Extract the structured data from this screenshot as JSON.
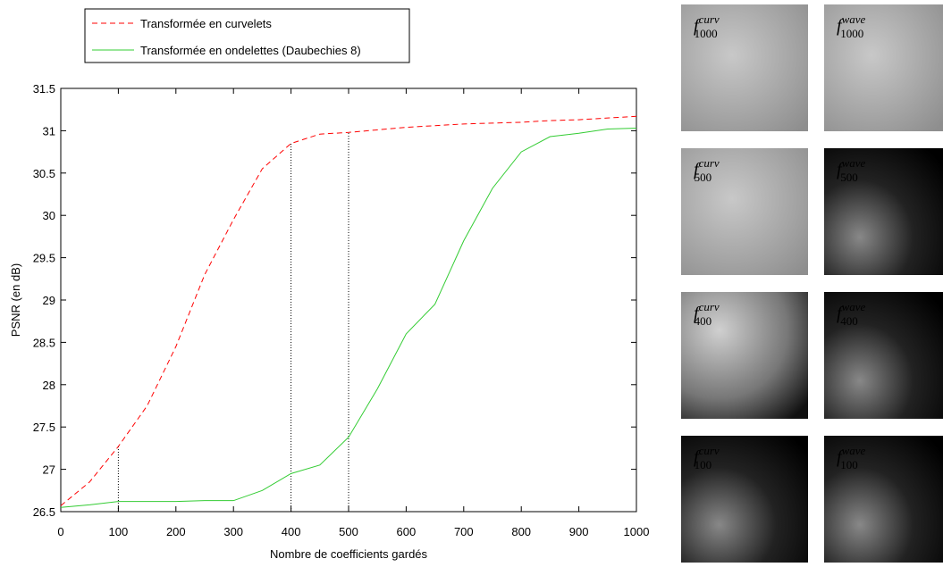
{
  "chart_data": {
    "type": "line",
    "xlabel": "Nombre de coefficients gardés",
    "ylabel": "PSNR (en dB)",
    "x": [
      0,
      50,
      100,
      150,
      200,
      250,
      300,
      350,
      400,
      450,
      500,
      550,
      600,
      650,
      700,
      750,
      800,
      850,
      900,
      950,
      1000
    ],
    "series": [
      {
        "name": "Transformée en curvelets",
        "color": "#ff0000",
        "linestyle": "dashed",
        "values": [
          26.57,
          26.85,
          27.27,
          27.75,
          28.45,
          29.3,
          29.95,
          30.55,
          30.85,
          30.96,
          30.98,
          31.01,
          31.04,
          31.06,
          31.08,
          31.09,
          31.1,
          31.12,
          31.13,
          31.15,
          31.17
        ]
      },
      {
        "name": "Transformée en ondelettes (Daubechies 8)",
        "color": "#33cc33",
        "linestyle": "solid",
        "values": [
          26.55,
          26.58,
          26.62,
          26.62,
          26.62,
          26.63,
          26.63,
          26.75,
          26.95,
          27.05,
          27.38,
          27.95,
          28.6,
          28.95,
          29.7,
          30.32,
          30.75,
          30.93,
          30.97,
          31.02,
          31.03
        ]
      }
    ],
    "reference_x": [
      100,
      400,
      500
    ],
    "xlim": [
      0,
      1000
    ],
    "xticks": [
      0,
      100,
      200,
      300,
      400,
      500,
      600,
      700,
      800,
      900,
      1000
    ],
    "ylim": [
      26.5,
      31.5
    ],
    "yticks": [
      26.5,
      27,
      27.5,
      28,
      28.5,
      29,
      29.5,
      30,
      30.5,
      31,
      31.5
    ],
    "legend": "top-left"
  },
  "thumbnails": [
    {
      "base": "f",
      "sup": "curv",
      "sub": "1000"
    },
    {
      "base": "f",
      "sup": "wave",
      "sub": "1000"
    },
    {
      "base": "f",
      "sup": "curv",
      "sub": "500"
    },
    {
      "base": "f",
      "sup": "wave",
      "sub": "500"
    },
    {
      "base": "f",
      "sup": "curv",
      "sub": "400"
    },
    {
      "base": "f",
      "sup": "wave",
      "sub": "400"
    },
    {
      "base": "f",
      "sup": "curv",
      "sub": "100"
    },
    {
      "base": "f",
      "sup": "wave",
      "sub": "100"
    }
  ]
}
